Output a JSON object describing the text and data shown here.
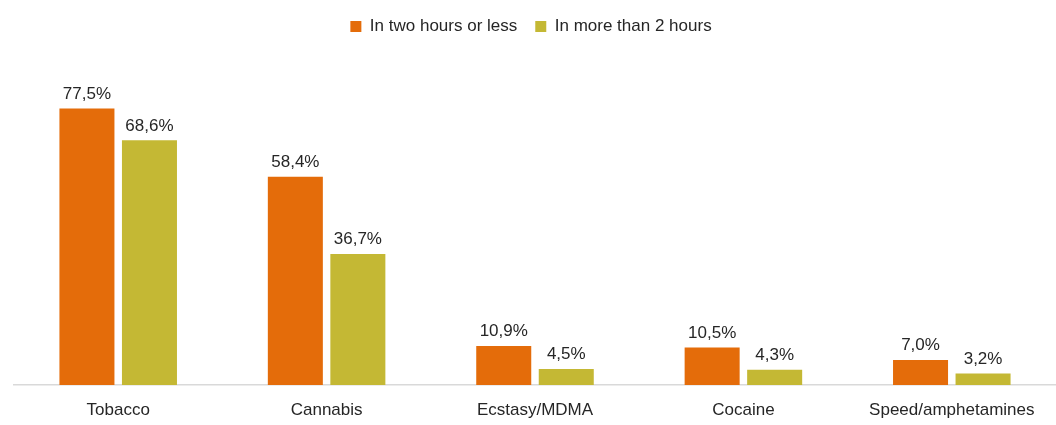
{
  "chart_data": {
    "type": "bar",
    "categories": [
      "Tobacco",
      "Cannabis",
      "Ecstasy/MDMA",
      "Cocaine",
      "Speed/amphetamines"
    ],
    "series": [
      {
        "name": "In two hours or less",
        "color": "#e46c0a",
        "values": [
          77.5,
          58.4,
          10.9,
          10.5,
          7.0
        ],
        "value_labels": [
          "77,5%",
          "58,4%",
          "10,9%",
          "10,5%",
          "7,0%"
        ]
      },
      {
        "name": "In more than 2 hours",
        "color": "#c4b834",
        "values": [
          68.6,
          36.7,
          4.5,
          4.3,
          3.2
        ],
        "value_labels": [
          "68,6%",
          "36,7%",
          "4,5%",
          "4,3%",
          "3,2%"
        ]
      }
    ],
    "legend": "top",
    "tick_labels": "x"
  }
}
